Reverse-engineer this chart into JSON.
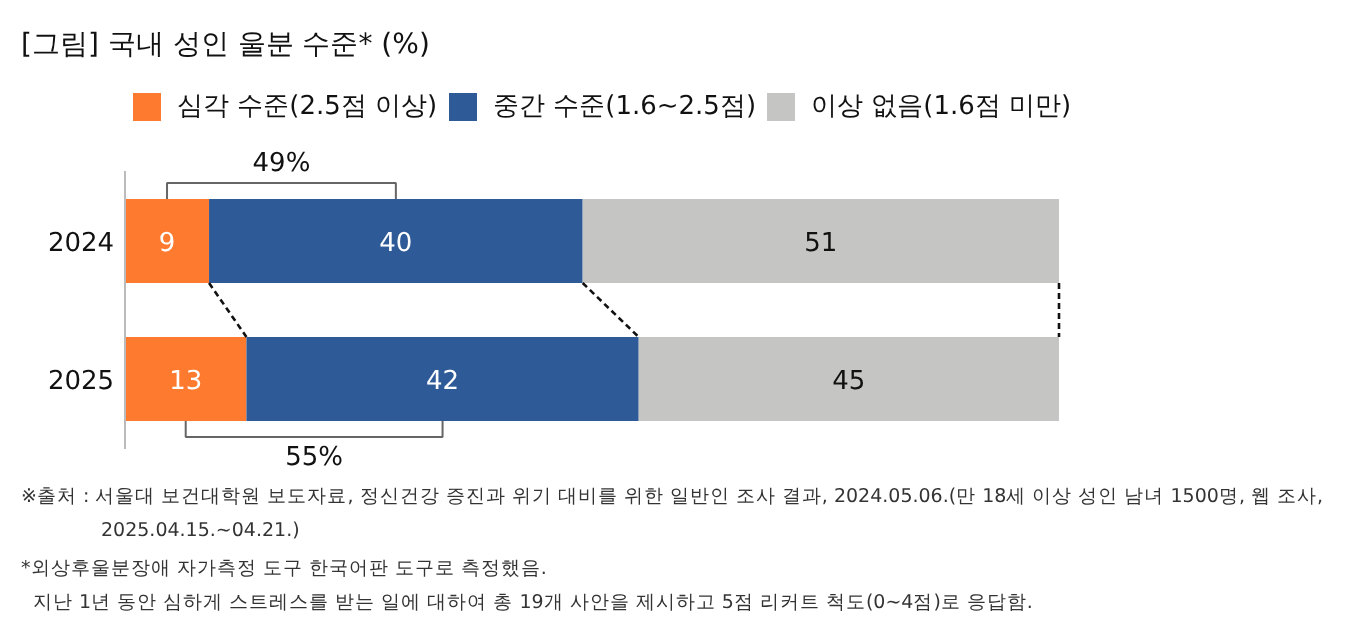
{
  "chart_data": {
    "type": "bar",
    "orientation": "horizontal",
    "stacked": true,
    "title": "[그림] 국내 성인 울분 수준* (%)",
    "categories": [
      "2024",
      "2025"
    ],
    "series": [
      {
        "name": "심각 수준(2.5점 이상)",
        "color": "#fe7a2f",
        "values": [
          9,
          13
        ]
      },
      {
        "name": "중간 수준(1.6~2.5점)",
        "color": "#2e5a98",
        "values": [
          40,
          42
        ]
      },
      {
        "name": "이상 없음(1.6점 미만)",
        "color": "#c5c5c3",
        "values": [
          51,
          45
        ]
      }
    ],
    "data_labels": true,
    "legend": "top",
    "annotations": [
      "49%",
      "55%",
      "※출처 : 서울대 보건대학원 보도자료, 정신건강 증진과 위기 대비를 위한 일반인 조사 결과, 2024.05.06.(만 18세 이상 성인 남녀 1500명, 웹 조사,\n2025.04.15.~04.21.)",
      "*외상후울분장애 자가측정 도구 한국어판 도구로 측정했음.\n지난 1년 동안 심하게 스트레스를 받는 일에 대하여 총 19개 사안을 제시하고 5점 리커트 척도(0~4점)로 응답함."
    ]
  }
}
